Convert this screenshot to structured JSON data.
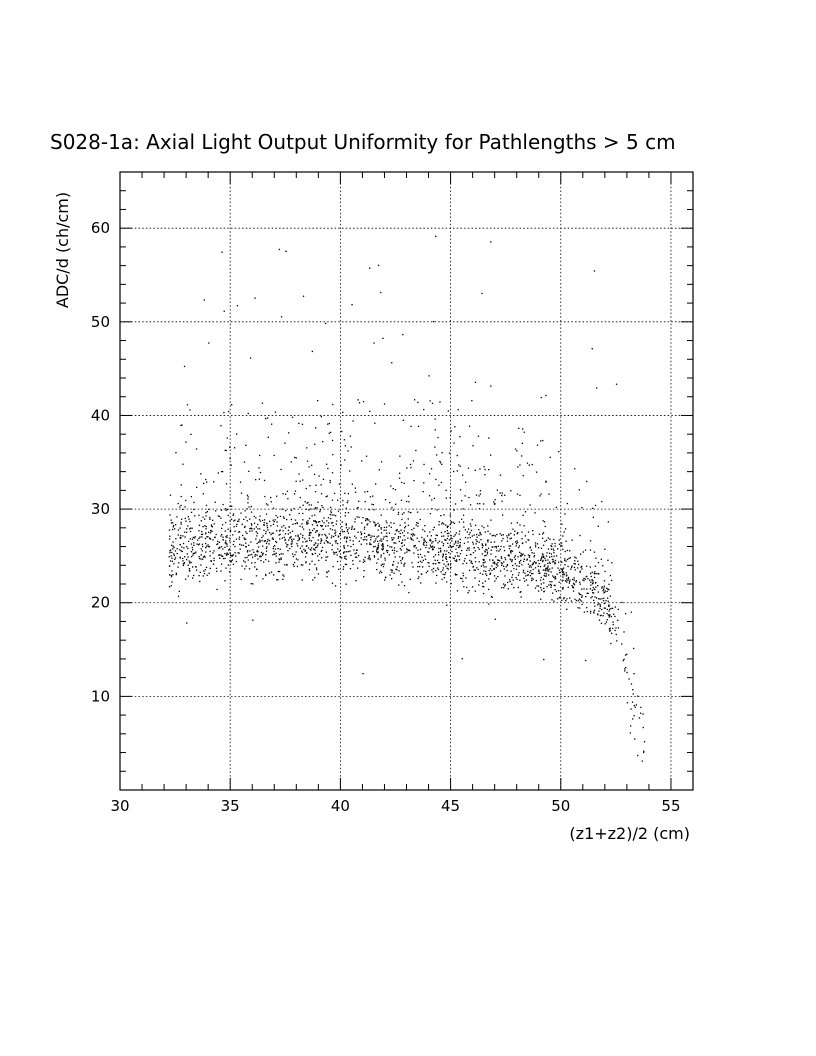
{
  "chart_data": {
    "type": "scatter",
    "title": "S028-1a: Axial Light Output Uniformity for Pathlengths > 5 cm",
    "xlabel": "(z1+z2)/2 (cm)",
    "ylabel": "ADC/d (ch/cm)",
    "xlim": [
      30,
      56
    ],
    "ylim": [
      0,
      66
    ],
    "x_ticks": [
      30,
      35,
      40,
      45,
      50,
      55
    ],
    "y_ticks": [
      10,
      20,
      30,
      40,
      50,
      60
    ],
    "x_tick_labels": [
      "30",
      "35",
      "40",
      "45",
      "50",
      "55"
    ],
    "y_tick_labels": [
      "10",
      "20",
      "30",
      "40",
      "50",
      "60"
    ],
    "grid": true,
    "legend": "none",
    "point_color": "#000000",
    "band_profile": {
      "x": [
        32.2,
        34,
        36,
        38,
        40,
        42,
        44,
        46,
        48,
        49.5,
        50.5,
        51.5,
        52.3,
        52.8,
        53.2,
        53.8
      ],
      "y_center": [
        26,
        26,
        26.5,
        26.5,
        27,
        26.5,
        26,
        25.5,
        24.5,
        24,
        22.5,
        21.5,
        19,
        14,
        9,
        5
      ],
      "y_spread": [
        3.5,
        3.5,
        3.5,
        3.5,
        3.5,
        3.5,
        3.5,
        3.5,
        3.2,
        3,
        3,
        3,
        3,
        4,
        4,
        2
      ]
    },
    "outliers": [
      {
        "x": 34.6,
        "y": 57.5
      },
      {
        "x": 37.2,
        "y": 57.8
      },
      {
        "x": 37.5,
        "y": 57.6
      },
      {
        "x": 44.3,
        "y": 59.2
      },
      {
        "x": 46.8,
        "y": 58.6
      },
      {
        "x": 51.5,
        "y": 55.5
      },
      {
        "x": 41.3,
        "y": 55.8
      },
      {
        "x": 41.7,
        "y": 56.1
      },
      {
        "x": 33.8,
        "y": 52.4
      },
      {
        "x": 34.7,
        "y": 51.2
      },
      {
        "x": 35.3,
        "y": 51.8
      },
      {
        "x": 36.1,
        "y": 52.6
      },
      {
        "x": 38.3,
        "y": 52.8
      },
      {
        "x": 40.5,
        "y": 51.9
      },
      {
        "x": 41.8,
        "y": 53.2
      },
      {
        "x": 46.4,
        "y": 53.1
      },
      {
        "x": 37.3,
        "y": 50.6
      },
      {
        "x": 39.3,
        "y": 49.9
      },
      {
        "x": 41.5,
        "y": 47.8
      },
      {
        "x": 41.9,
        "y": 48.3
      },
      {
        "x": 42.8,
        "y": 48.7
      },
      {
        "x": 44.2,
        "y": 50.1
      },
      {
        "x": 34.0,
        "y": 47.8
      },
      {
        "x": 51.4,
        "y": 47.2
      },
      {
        "x": 32.9,
        "y": 45.3
      },
      {
        "x": 35.9,
        "y": 46.2
      },
      {
        "x": 38.7,
        "y": 46.9
      },
      {
        "x": 42.3,
        "y": 45.7
      },
      {
        "x": 44.0,
        "y": 44.3
      },
      {
        "x": 46.1,
        "y": 43.6
      },
      {
        "x": 46.8,
        "y": 43.2
      },
      {
        "x": 51.6,
        "y": 43.0
      },
      {
        "x": 52.5,
        "y": 43.4
      },
      {
        "x": 49.3,
        "y": 42.2
      },
      {
        "x": 36.0,
        "y": 18.2
      },
      {
        "x": 33.0,
        "y": 17.9
      },
      {
        "x": 41.0,
        "y": 12.5
      },
      {
        "x": 45.5,
        "y": 14.1
      },
      {
        "x": 49.2,
        "y": 14.0
      },
      {
        "x": 51.1,
        "y": 13.9
      },
      {
        "x": 47.0,
        "y": 18.3
      },
      {
        "x": 44.8,
        "y": 19.8
      }
    ]
  }
}
